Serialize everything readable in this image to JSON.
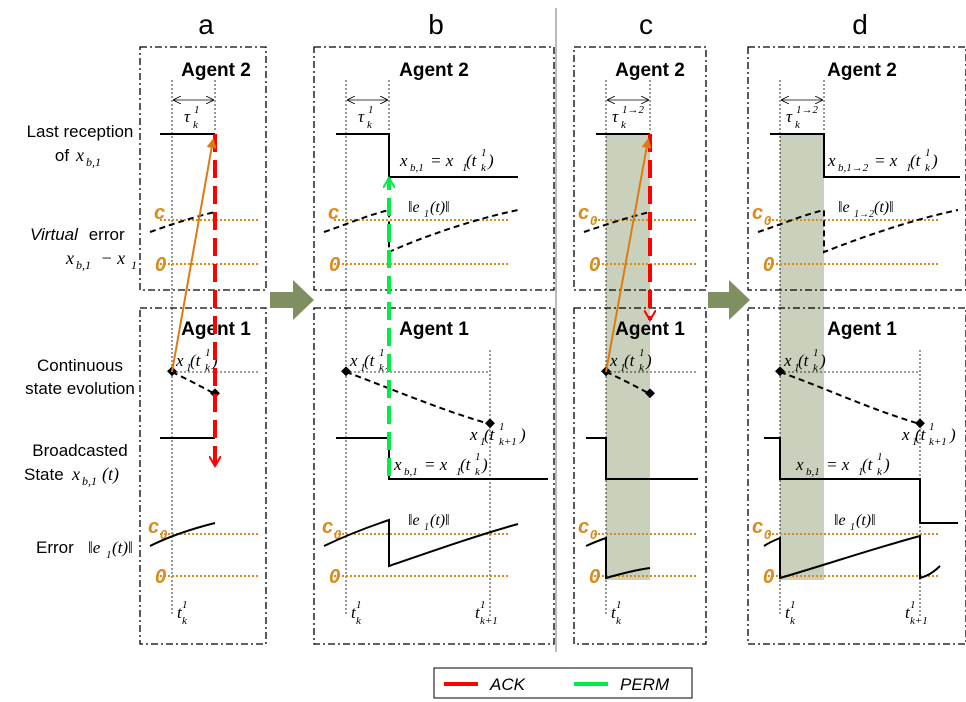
{
  "columns": [
    {
      "label": "a",
      "agent2_title": "Agent 2",
      "agent1_title": "Agent 1",
      "tau_base": "τ",
      "tau_sub": "k",
      "tau_sup": "1",
      "threshold": "c"
    },
    {
      "label": "b",
      "agent2_title": "Agent 2",
      "agent1_title": "Agent 1",
      "tau_base": "τ",
      "tau_sub": "k",
      "tau_sup": "1",
      "threshold": "c"
    },
    {
      "label": "c",
      "agent2_title": "Agent 2",
      "agent1_title": "Agent 1",
      "tau_base": "τ",
      "tau_sub": "k",
      "tau_sup": "1→2",
      "threshold": "c0"
    },
    {
      "label": "d",
      "agent2_title": "Agent 2",
      "agent1_title": "Agent 1",
      "tau_base": "τ",
      "tau_sub": "k",
      "tau_sup": "1→2",
      "threshold": "c0"
    }
  ],
  "row_labels": {
    "last_reception_line1": "Last reception",
    "last_reception_line2": "of",
    "last_reception_var": "x",
    "last_reception_sub": "b,1",
    "virtual_error_italic": "Virtual",
    "virtual_error_rest": " error",
    "virtual_error_expr": "x",
    "virtual_error_expr_sub": "b,1",
    "virtual_error_minus": " − x",
    "virtual_error_minus_sub": "1",
    "continuous_line1": "Continuous",
    "continuous_line2": "state evolution",
    "broadcasted_line1": "Broadcasted",
    "broadcasted_line2": "State",
    "broadcasted_var": "x",
    "broadcasted_sub": "b,1",
    "broadcasted_arg": "(t)",
    "error_label": "Error",
    "error_expr": "‖e",
    "error_expr_sub": "1",
    "error_expr_end": "(t)‖"
  },
  "annotations": {
    "zero": "0",
    "c": "c",
    "c0": "c",
    "c0_sub": "0",
    "xb_eq": "= x",
    "x1": "x",
    "t_k": "t",
    "t_k_sub": "k",
    "t_k1_sub": "k+1",
    "sup1": "1",
    "e1": "‖e",
    "e1_sub": "1",
    "e12_sub": "1→2",
    "e_end": "(t)‖",
    "xb_sub": "b,1",
    "xb12_sub": "b,1→2"
  },
  "legend": {
    "items": [
      {
        "label": "ACK",
        "color": "#ff0000"
      },
      {
        "label": "PERM",
        "color": "#00ee44"
      }
    ]
  },
  "colors": {
    "orange": "#d98b1c",
    "arrow_orange": "#e07a10",
    "ack_red": "#ff0000",
    "perm_green": "#00ee44",
    "shade": "#c9d1bd",
    "big_arrow": "#7f8f62",
    "separator": "#bbbbbb"
  }
}
